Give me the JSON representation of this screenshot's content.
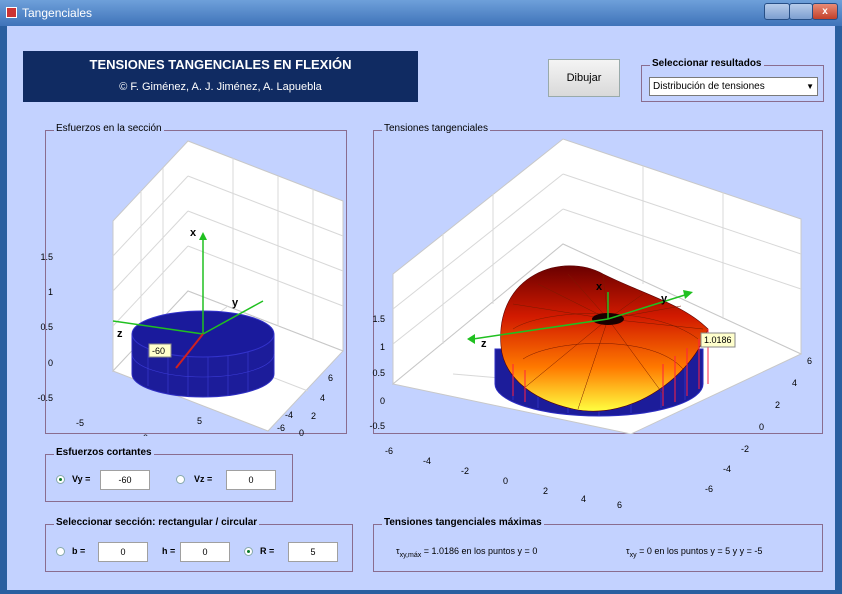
{
  "window": {
    "title": "Tangenciales",
    "close_glyph": "x"
  },
  "header": {
    "title": "TENSIONES TANGENCIALES EN FLEXIÓN",
    "authors": "© F. Giménez, A. J. Jiménez, A. Lapuebla"
  },
  "buttons": {
    "draw_label": "Dibujar"
  },
  "results": {
    "group_title": "Seleccionar resultados",
    "selected": "Distribución de tensiones"
  },
  "left_plot": {
    "group_title": "Esfuerzos en la sección",
    "z_ticks": [
      "1.5",
      "1",
      "0.5",
      "0",
      "-0.5"
    ],
    "x_ticks": [
      "-5",
      "0",
      "5"
    ],
    "y_ticks": [
      "6",
      "4",
      "2",
      "0",
      "-2",
      "-4",
      "-6"
    ],
    "axis_x": "x",
    "axis_y": "y",
    "axis_z": "z",
    "vy_tag": "-60"
  },
  "right_plot": {
    "group_title": "Tensiones tangenciales",
    "z_ticks": [
      "1.5",
      "1",
      "0.5",
      "0",
      "-0.5"
    ],
    "x_ticks": [
      "-6",
      "-4",
      "-2",
      "0",
      "2",
      "4",
      "6"
    ],
    "y_ticks": [
      "6",
      "4",
      "2",
      "0",
      "-2",
      "-4",
      "-6"
    ],
    "axis_x": "x",
    "axis_y": "y",
    "axis_z": "z",
    "max_tag": "1.0186"
  },
  "shear": {
    "group_title": "Esfuerzos cortantes",
    "vy_label": "Vy =",
    "vy_value": "-60",
    "vz_label": "Vz =",
    "vz_value": "0"
  },
  "section": {
    "group_title": "Seleccionar sección:  rectangular / circular",
    "b_label": "b =",
    "b_value": "0",
    "h_label": "h =",
    "h_value": "0",
    "r_label": "R =",
    "r_value": "5"
  },
  "max_stress": {
    "group_title": "Tensiones tangenciales máximas",
    "tau_max_symbol": "τ",
    "tau_max_sub": "xy,máx",
    "tau_max_text": "= 1.0186   en los puntos  y = 0",
    "tau_symbol": "τ",
    "tau_sub": "xy",
    "tau_text": "= 0   en los puntos  y = 5  y  y = -5"
  }
}
